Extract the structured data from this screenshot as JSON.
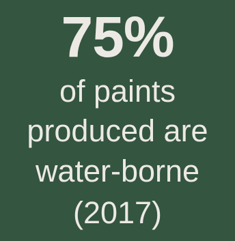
{
  "stat": {
    "value": "75%",
    "lines": [
      "of paints",
      "produced are",
      "water-borne",
      "(2017)"
    ]
  },
  "colors": {
    "background": "#345540",
    "text": "#ece9e4"
  }
}
